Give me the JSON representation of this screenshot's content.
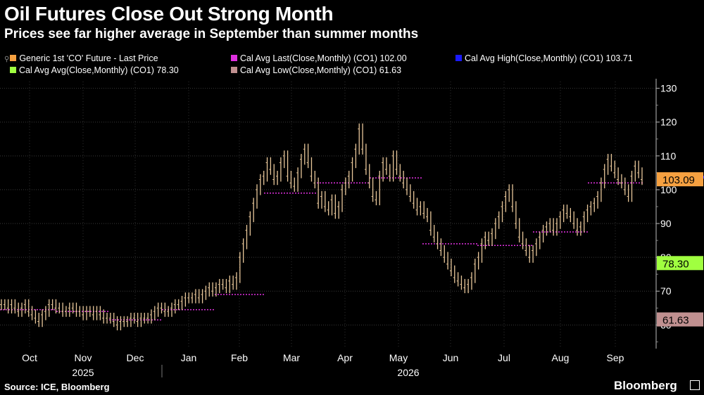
{
  "header": {
    "title": "Oil Futures Close Out Strong Month",
    "subtitle": "Prices see far higher average in September than summer months"
  },
  "legend": [
    {
      "label": "Generic 1st 'CO' Future - Last Price",
      "color": "#f5a040"
    },
    {
      "label": "Cal Avg Last(Close,Monthly) (CO1) 102.00",
      "color": "#e030e0"
    },
    {
      "label": "Cal Avg High(Close,Monthly) (CO1) 103.71",
      "color": "#1a1aff"
    },
    {
      "label": "Cal Avg Avg(Close,Monthly) (CO1)  78.30",
      "color": "#a0ff40"
    },
    {
      "label": "Cal Avg Low(Close,Monthly) (CO1)  61.63",
      "color": "#c09090"
    }
  ],
  "footer": {
    "source": "Source: ICE, Bloomberg",
    "brand": "Bloomberg"
  },
  "chart_data": {
    "type": "line",
    "ylim": [
      53,
      132
    ],
    "yticks": [
      60,
      70,
      80,
      90,
      100,
      110,
      120,
      130
    ],
    "months": [
      "Oct",
      "Nov",
      "Dec",
      "Jan",
      "Feb",
      "Mar",
      "Apr",
      "May",
      "Jun",
      "Jul",
      "Aug",
      "Sep"
    ],
    "years": [
      "2025",
      "2026"
    ],
    "value_badges": [
      {
        "value": "103.09",
        "y": 103.09,
        "color": "#f5a040"
      },
      {
        "value": "78.30",
        "y": 78.3,
        "color": "#a0ff40"
      },
      {
        "value": "61.63",
        "y": 61.63,
        "color": "#c09090"
      }
    ],
    "series": [
      {
        "name": "Generic 1st 'CO' Future - Last Price",
        "color": "#e8c79a",
        "values": [
          66,
          66,
          65,
          66,
          65,
          64,
          65,
          66,
          64,
          63,
          62,
          61,
          63,
          64,
          66,
          66,
          65,
          65,
          64,
          64,
          65,
          65,
          64,
          64,
          63,
          64,
          64,
          63,
          64,
          63,
          62,
          62,
          62,
          61,
          60,
          61,
          61,
          61,
          62,
          62,
          61,
          62,
          62,
          62,
          63,
          64,
          65,
          65,
          64,
          64,
          65,
          66,
          66,
          67,
          68,
          68,
          68,
          69,
          68,
          69,
          70,
          71,
          70,
          71,
          72,
          72,
          71,
          73,
          72,
          74,
          80,
          84,
          88,
          92,
          96,
          100,
          103,
          104,
          108,
          106,
          103,
          104,
          108,
          110,
          104,
          102,
          101,
          105,
          109,
          112,
          108,
          104,
          102,
          96,
          98,
          95,
          94,
          97,
          93,
          95,
          100,
          102,
          104,
          108,
          112,
          118,
          112,
          106,
          102,
          98,
          97,
          104,
          108,
          106,
          104,
          110,
          106,
          104,
          102,
          100,
          98,
          96,
          94,
          95,
          93,
          92,
          88,
          86,
          84,
          82,
          80,
          78,
          76,
          74,
          73,
          72,
          71,
          72,
          74,
          78,
          80,
          84,
          86,
          85,
          87,
          90,
          92,
          95,
          98,
          100,
          95,
          90,
          86,
          84,
          82,
          80,
          82,
          84,
          86,
          88,
          89,
          90,
          88,
          90,
          92,
          94,
          93,
          92,
          90,
          88,
          89,
          92,
          94,
          95,
          96,
          98,
          102,
          106,
          109,
          107,
          105,
          103,
          102,
          100,
          98,
          104,
          107,
          105,
          103
        ]
      }
    ],
    "monthly_averages": {
      "name": "Cal Avg Last(Close,Monthly) (CO1)",
      "color": "#e030e0",
      "values": [
        64.5,
        64,
        61.5,
        64.5,
        69,
        99,
        102,
        103.5,
        84,
        83.5,
        87.5,
        102
      ]
    }
  }
}
